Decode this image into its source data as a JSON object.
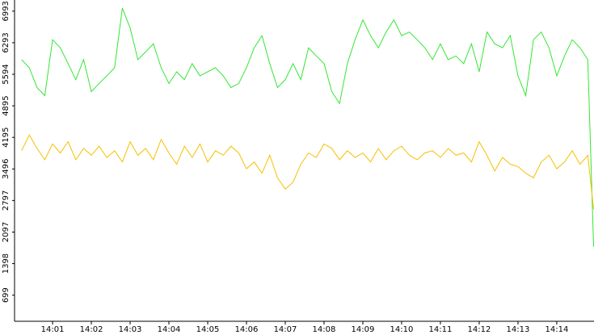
{
  "chart_data": {
    "type": "line",
    "x": [
      0.2,
      0.4,
      0.6,
      0.8,
      1.0,
      1.2,
      1.4,
      1.6,
      1.8,
      2.0,
      2.2,
      2.4,
      2.6,
      2.8,
      3.0,
      3.2,
      3.4,
      3.6,
      3.8,
      4.0,
      4.2,
      4.4,
      4.6,
      4.8,
      5.0,
      5.2,
      5.4,
      5.6,
      5.8,
      6.0,
      6.2,
      6.4,
      6.6,
      6.8,
      7.0,
      7.2,
      7.4,
      7.6,
      7.8,
      8.0,
      8.2,
      8.4,
      8.6,
      8.8,
      9.0,
      9.2,
      9.4,
      9.6,
      9.8,
      10.0,
      10.2,
      10.4,
      10.6,
      10.8,
      11.0,
      11.2,
      11.4,
      11.6,
      11.8,
      12.0,
      12.2,
      12.4,
      12.6,
      12.8,
      13.0,
      13.2,
      13.4,
      13.6,
      13.8,
      14.0,
      14.2,
      14.4,
      14.6,
      14.8,
      14.95
    ],
    "series": [
      {
        "color": "#33e633",
        "values": [
          5920,
          5740,
          5300,
          5120,
          6360,
          6180,
          5830,
          5475,
          5920,
          5210,
          5390,
          5560,
          5740,
          7060,
          6620,
          5920,
          6090,
          6270,
          5740,
          5390,
          5650,
          5475,
          5830,
          5560,
          5650,
          5740,
          5560,
          5300,
          5390,
          5740,
          6180,
          6450,
          5830,
          5300,
          5475,
          5830,
          5475,
          6180,
          6000,
          5830,
          5210,
          4945,
          5830,
          6360,
          6800,
          6450,
          6180,
          6530,
          6800,
          6450,
          6530,
          6360,
          6180,
          5920,
          6270,
          5920,
          6000,
          5830,
          6270,
          5650,
          6530,
          6270,
          6180,
          6450,
          5560,
          5120,
          6360,
          6530,
          6180,
          5560,
          6000,
          6360,
          6180,
          5920,
          1770
        ]
      },
      {
        "color": "#f5c000",
        "values": [
          3900,
          4250,
          3950,
          3700,
          4050,
          3850,
          4100,
          3700,
          3950,
          3800,
          4000,
          3750,
          3900,
          3650,
          4100,
          3800,
          3950,
          3700,
          4150,
          3850,
          3600,
          4000,
          3750,
          4050,
          3650,
          3900,
          3800,
          4000,
          3850,
          3500,
          3650,
          3400,
          3800,
          3300,
          3050,
          3200,
          3600,
          3850,
          3750,
          4050,
          3950,
          3700,
          3900,
          3750,
          3850,
          3650,
          3950,
          3700,
          3900,
          4000,
          3800,
          3700,
          3850,
          3900,
          3750,
          3950,
          3800,
          3850,
          3650,
          4100,
          3800,
          3450,
          3750,
          3600,
          3550,
          3400,
          3300,
          3650,
          3800,
          3500,
          3650,
          3900,
          3600,
          3800,
          2600
        ]
      }
    ],
    "xlim": [
      0.02,
      14.96
    ],
    "xticks": [
      {
        "value": 1,
        "label": "14:01"
      },
      {
        "value": 2,
        "label": "14:02"
      },
      {
        "value": 3,
        "label": "14:03"
      },
      {
        "value": 4,
        "label": "14:04"
      },
      {
        "value": 5,
        "label": "14:05"
      },
      {
        "value": 6,
        "label": "14:06"
      },
      {
        "value": 7,
        "label": "14:07"
      },
      {
        "value": 8,
        "label": "14:08"
      },
      {
        "value": 9,
        "label": "14:09"
      },
      {
        "value": 10,
        "label": "14:10"
      },
      {
        "value": 11,
        "label": "14:11"
      },
      {
        "value": 12,
        "label": "14:12"
      },
      {
        "value": 13,
        "label": "14:13"
      },
      {
        "value": 14,
        "label": "14:14"
      }
    ],
    "ylim": [
      120,
      7240
    ],
    "yticks": [
      699,
      1398,
      2097,
      2797,
      3496,
      4195,
      4895,
      5594,
      6293,
      6993
    ]
  }
}
